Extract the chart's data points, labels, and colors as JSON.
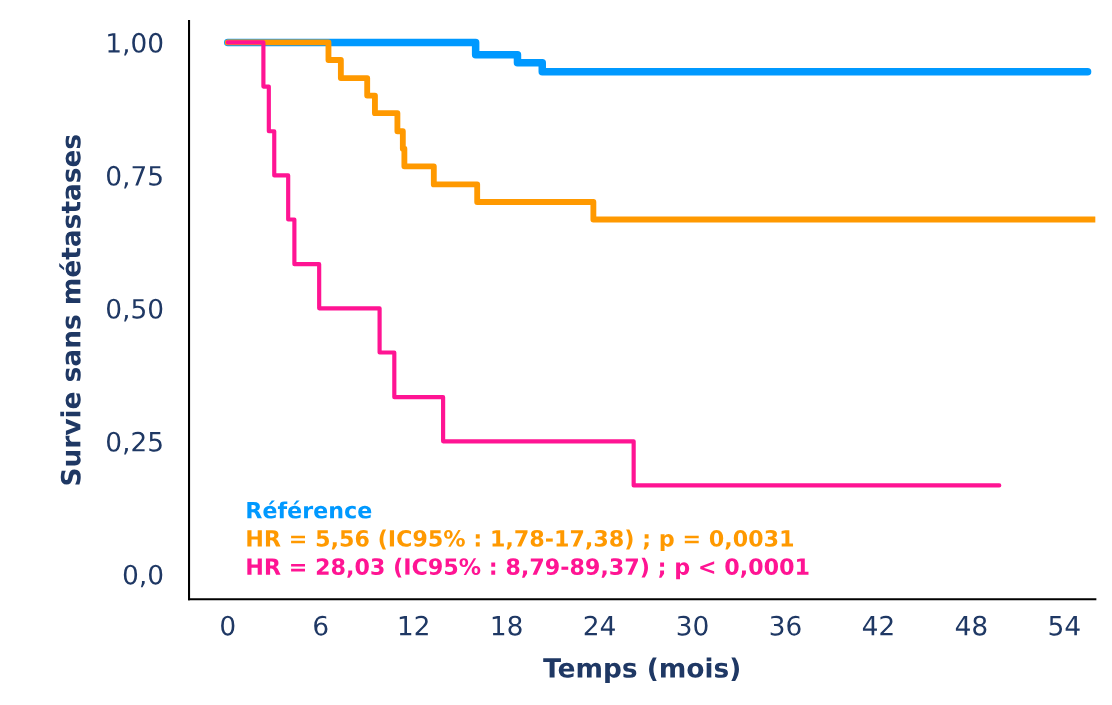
{
  "chart_data": {
    "type": "step",
    "xlabel": "Temps (mois)",
    "ylabel": "Survie sans métastases",
    "xlim": [
      -2.5,
      56
    ],
    "ylim": [
      -0.047,
      1.04
    ],
    "xticks": [
      0,
      6,
      12,
      18,
      24,
      30,
      36,
      42,
      48,
      54
    ],
    "yticks": [
      {
        "value": 0,
        "label": "0,0"
      },
      {
        "value": 0.25,
        "label": "0,25"
      },
      {
        "value": 0.5,
        "label": "0,50"
      },
      {
        "value": 0.75,
        "label": "0,75"
      },
      {
        "value": 1,
        "label": "1,00"
      }
    ],
    "grid": false,
    "legend": "bottom left",
    "marker": "none",
    "line_style": "solid",
    "series": [
      {
        "name": "Référence",
        "color": "#0099ff",
        "x": [
          0,
          16.0,
          18.7,
          20.3,
          55.5
        ],
        "values": [
          1.0,
          0.977,
          0.962,
          0.945,
          0.945
        ]
      },
      {
        "name": "HR = 5,56 (IC95% : 1,78-17,38) ; p = 0,0031",
        "color": "#ff9900",
        "x": [
          0,
          6.5,
          7.3,
          9.0,
          9.5,
          10.95,
          11.3,
          11.4,
          13.3,
          16.1,
          23.6,
          56
        ],
        "values": [
          1.0,
          0.967,
          0.933,
          0.9,
          0.867,
          0.833,
          0.8,
          0.767,
          0.733,
          0.7,
          0.667,
          0.667
        ]
      },
      {
        "name": "HR = 28,03 (IC95% : 8,79-89,37) ; p < 0,0001",
        "color": "#ff1493",
        "x": [
          0,
          2.3,
          2.65,
          3.0,
          3.9,
          4.3,
          5.9,
          9.8,
          10.75,
          13.9,
          26.2,
          49.8
        ],
        "values": [
          1.0,
          0.917,
          0.833,
          0.75,
          0.667,
          0.583,
          0.5,
          0.417,
          0.333,
          0.25,
          0.167,
          0.167
        ]
      }
    ]
  }
}
